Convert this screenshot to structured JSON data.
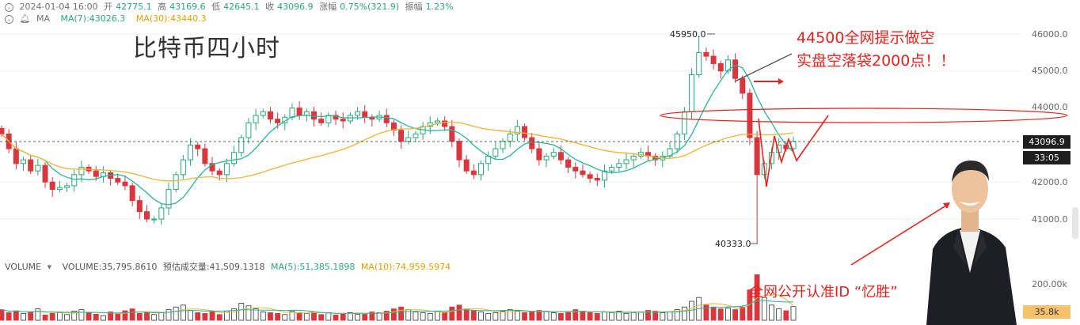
{
  "header": {
    "datetime": "2024-01-04 16:00",
    "open_label": "开",
    "open": "42775.1",
    "high_label": "高",
    "high": "43169.6",
    "low_label": "低",
    "low": "42645.1",
    "close_label": "收",
    "close": "43096.9",
    "change_label": "涨幅",
    "change": "0.75%(321.9)",
    "amp_label": "振幅",
    "amp": "1.23%",
    "ma_label": "MA",
    "ma7": "MA(7):43026.3",
    "ma30": "MA(30):43440.3"
  },
  "title": "比特币四小时",
  "annotations": {
    "line1": "44500全网提示做空",
    "line2": "实盘空落袋2000点！！",
    "id_text": "全网公开认准ID “忆胜”"
  },
  "price_labels": {
    "high": "45950.0",
    "low": "40333.0"
  },
  "price_axis": [
    "46000.0",
    "45000.0",
    "44000.0",
    "43000.0",
    "42000.0",
    "41000.0"
  ],
  "current_price": "43096.9",
  "countdown": "33:05",
  "volume": {
    "label": "VOLUME",
    "value": "VOLUME:35,795.8610",
    "estimate": "预估成交量:41,509.1318",
    "ma5": "MA(5):51,385.1898",
    "ma10": "MA(10):74,959.5974",
    "axis_top": "200.00k",
    "current_tag": "35.8k"
  },
  "colors": {
    "up": "#2aa876",
    "down": "#d9363e",
    "ma7": "#27b59a",
    "ma30": "#f2b233",
    "annotation": "#e8231f"
  },
  "chart_data": {
    "type": "candlestick",
    "title": "比特币四小时",
    "y_range": [
      40333,
      45950
    ],
    "y_ticks": [
      41000,
      42000,
      43000,
      44000,
      45000,
      46000
    ],
    "last_close": 43096.9,
    "price_series": [
      43300,
      42900,
      42500,
      42600,
      42300,
      42450,
      42000,
      41800,
      41850,
      41900,
      42200,
      42400,
      42300,
      42150,
      42250,
      42100,
      42000,
      41900,
      41500,
      41200,
      41000,
      41000,
      41300,
      41800,
      42200,
      42600,
      43000,
      42900,
      42500,
      42300,
      42200,
      42500,
      42800,
      43200,
      43600,
      43800,
      43900,
      43700,
      43600,
      43750,
      44000,
      43800,
      43900,
      43700,
      43600,
      43800,
      43700,
      43650,
      43800,
      43900,
      43750,
      43700,
      43800,
      43600,
      43400,
      43100,
      43200,
      43300,
      43500,
      43600,
      43650,
      43500,
      43100,
      42600,
      42300,
      42200,
      42500,
      42700,
      42900,
      43100,
      43300,
      43500,
      43200,
      42900,
      42600,
      42700,
      42800,
      42600,
      42400,
      42300,
      42200,
      42100,
      42050,
      42300,
      42400,
      42500,
      42600,
      42700,
      42800,
      42700,
      42600,
      42700,
      42900,
      43300,
      43900,
      44900,
      45500,
      45400,
      45200,
      45000,
      45300,
      44800,
      44400,
      43200,
      42200,
      42500,
      42800,
      43000,
      42900,
      43096.9
    ],
    "volume_series": [
      28,
      20,
      25,
      18,
      22,
      30,
      14,
      18,
      20,
      15,
      24,
      28,
      20,
      16,
      12,
      22,
      18,
      25,
      30,
      18,
      22,
      15,
      20,
      28,
      35,
      40,
      26,
      20,
      18,
      22,
      15,
      24,
      30,
      45,
      38,
      30,
      22,
      20,
      18,
      15,
      24,
      20,
      18,
      22,
      15,
      20,
      14,
      18,
      20,
      16,
      18,
      22,
      20,
      24,
      30,
      35,
      28,
      22,
      20,
      18,
      24,
      20,
      35,
      40,
      30,
      25,
      22,
      18,
      20,
      24,
      28,
      25,
      20,
      22,
      26,
      24,
      20,
      18,
      22,
      28,
      24,
      20,
      18,
      22,
      20,
      24,
      18,
      20,
      22,
      26,
      24,
      20,
      22,
      28,
      35,
      50,
      60,
      40,
      35,
      30,
      32,
      28,
      35,
      80,
      120,
      60,
      40,
      30,
      25,
      36
    ]
  }
}
